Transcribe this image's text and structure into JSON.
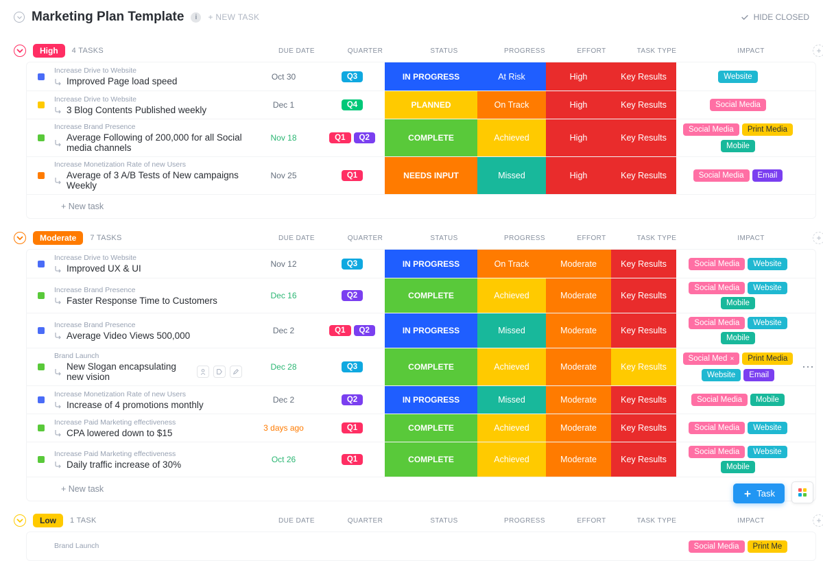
{
  "header": {
    "title": "Marketing Plan Template",
    "newTask": "+ NEW TASK",
    "hideClosed": "HIDE CLOSED"
  },
  "columns": {
    "dueDate": "DUE DATE",
    "quarter": "QUARTER",
    "status": "STATUS",
    "progress": "PROGRESS",
    "effort": "EFFORT",
    "taskType": "TASK TYPE",
    "impact": "IMPACT"
  },
  "newTaskRow": "+ New task",
  "fab": {
    "label": "Task"
  },
  "colors": {
    "high": "#ff2e63",
    "moderate": "#ff7b00",
    "low": "#ffca00",
    "q1": "#ff2e63",
    "q2": "#7a3ff0",
    "q3": "#0fa8e0",
    "q4": "#00c878",
    "statusBlue": "#1f5eff",
    "statusYellow": "#ffca00",
    "statusGreen": "#59c93a",
    "statusOrange": "#ff7b00",
    "statusRed": "#e92c2c",
    "progressBlue": "#1f5eff",
    "progressOrange": "#ff7b00",
    "progressYellow": "#ffca00",
    "progressTeal": "#18b89b",
    "effortRed": "#e92c2c",
    "effortOrange": "#ff7b00",
    "taskTypeRed": "#e92c2c",
    "taskTypeYellow": "#ffca00",
    "impactWebsite": "#1fb8d1",
    "impactSocial": "#ff6fa4",
    "impactPrint": "#ffca00",
    "impactMobile": "#18b89b",
    "impactEmail": "#7a3ff0",
    "dueGray": "#656f7d",
    "dueGreen": "#2bb673",
    "dueOrange": "#ff7b00",
    "squareBlue": "#4a6cf7",
    "squareYellow": "#ffca00",
    "squareGreen": "#59c93a",
    "squareOrange": "#ff7b00",
    "fabBlue": "#2196f3",
    "gridRed": "#ff5757",
    "gridYellow": "#ffca00",
    "gridGreen": "#59c93a",
    "gridBlue": "#0fa8e0"
  },
  "groups": [
    {
      "name": "High",
      "badgeColor": "high",
      "collapseColor": "#ff2e63",
      "taskCount": "4 TASKS",
      "tasks": [
        {
          "breadcrumb": "Increase Drive to Website",
          "title": "Improved Page load speed",
          "square": "squareBlue",
          "due": "Oct 30",
          "dueColor": "dueGray",
          "quarters": [
            {
              "label": "Q3",
              "color": "q3"
            }
          ],
          "status": "IN PROGRESS",
          "statusColor": "statusBlue",
          "progress": "At Risk",
          "progressColor": "progressBlue",
          "effort": "High",
          "effortColor": "effortRed",
          "taskType": "Key Results",
          "taskTypeColor": "taskTypeRed",
          "impact": [
            {
              "label": "Website",
              "color": "impactWebsite"
            }
          ]
        },
        {
          "breadcrumb": "Increase Drive to Website",
          "title": "3 Blog Contents Published weekly",
          "square": "squareYellow",
          "due": "Dec 1",
          "dueColor": "dueGray",
          "quarters": [
            {
              "label": "Q4",
              "color": "q4"
            }
          ],
          "status": "PLANNED",
          "statusColor": "statusYellow",
          "progress": "On Track",
          "progressColor": "progressOrange",
          "effort": "High",
          "effortColor": "effortRed",
          "taskType": "Key Results",
          "taskTypeColor": "taskTypeRed",
          "impact": [
            {
              "label": "Social Media",
              "color": "impactSocial"
            }
          ]
        },
        {
          "breadcrumb": "Increase Brand Presence",
          "title": "Average Following of 200,000 for all Social media channels",
          "square": "squareGreen",
          "due": "Nov 18",
          "dueColor": "dueGreen",
          "quarters": [
            {
              "label": "Q1",
              "color": "q1"
            },
            {
              "label": "Q2",
              "color": "q2"
            }
          ],
          "status": "COMPLETE",
          "statusColor": "statusGreen",
          "progress": "Achieved",
          "progressColor": "progressYellow",
          "effort": "High",
          "effortColor": "effortRed",
          "taskType": "Key Results",
          "taskTypeColor": "taskTypeRed",
          "impact": [
            {
              "label": "Social Media",
              "color": "impactSocial"
            },
            {
              "label": "Print Media",
              "color": "impactPrint",
              "textColor": "#2a2e34"
            },
            {
              "label": "Mobile",
              "color": "impactMobile"
            }
          ]
        },
        {
          "breadcrumb": "Increase Monetization Rate of new Users",
          "title": "Average of 3 A/B Tests of New campaigns Weekly",
          "square": "squareOrange",
          "due": "Nov 25",
          "dueColor": "dueGray",
          "quarters": [
            {
              "label": "Q1",
              "color": "q1"
            }
          ],
          "status": "NEEDS INPUT",
          "statusColor": "statusOrange",
          "progress": "Missed",
          "progressColor": "progressTeal",
          "effort": "High",
          "effortColor": "effortRed",
          "taskType": "Key Results",
          "taskTypeColor": "taskTypeRed",
          "impact": [
            {
              "label": "Social Media",
              "color": "impactSocial"
            },
            {
              "label": "Email",
              "color": "impactEmail"
            }
          ]
        }
      ]
    },
    {
      "name": "Moderate",
      "badgeColor": "moderate",
      "collapseColor": "#ff7b00",
      "taskCount": "7 TASKS",
      "tasks": [
        {
          "breadcrumb": "Increase Drive to Website",
          "title": "Improved UX & UI",
          "square": "squareBlue",
          "due": "Nov 12",
          "dueColor": "dueGray",
          "quarters": [
            {
              "label": "Q3",
              "color": "q3"
            }
          ],
          "status": "IN PROGRESS",
          "statusColor": "statusBlue",
          "progress": "On Track",
          "progressColor": "progressOrange",
          "effort": "Moderate",
          "effortColor": "effortOrange",
          "taskType": "Key Results",
          "taskTypeColor": "taskTypeRed",
          "impact": [
            {
              "label": "Social Media",
              "color": "impactSocial"
            },
            {
              "label": "Website",
              "color": "impactWebsite"
            }
          ]
        },
        {
          "breadcrumb": "Increase Brand Presence",
          "title": "Faster Response Time to Customers",
          "square": "squareGreen",
          "due": "Dec 16",
          "dueColor": "dueGreen",
          "quarters": [
            {
              "label": "Q2",
              "color": "q2"
            }
          ],
          "status": "COMPLETE",
          "statusColor": "statusGreen",
          "progress": "Achieved",
          "progressColor": "progressYellow",
          "effort": "Moderate",
          "effortColor": "effortOrange",
          "taskType": "Key Results",
          "taskTypeColor": "taskTypeRed",
          "impact": [
            {
              "label": "Social Media",
              "color": "impactSocial"
            },
            {
              "label": "Website",
              "color": "impactWebsite"
            },
            {
              "label": "Mobile",
              "color": "impactMobile"
            }
          ]
        },
        {
          "breadcrumb": "Increase Brand Presence",
          "title": "Average Video Views 500,000",
          "square": "squareBlue",
          "due": "Dec 2",
          "dueColor": "dueGray",
          "quarters": [
            {
              "label": "Q1",
              "color": "q1"
            },
            {
              "label": "Q2",
              "color": "q2"
            }
          ],
          "status": "IN PROGRESS",
          "statusColor": "statusBlue",
          "progress": "Missed",
          "progressColor": "progressTeal",
          "effort": "Moderate",
          "effortColor": "effortOrange",
          "taskType": "Key Results",
          "taskTypeColor": "taskTypeRed",
          "impact": [
            {
              "label": "Social Media",
              "color": "impactSocial"
            },
            {
              "label": "Website",
              "color": "impactWebsite"
            },
            {
              "label": "Mobile",
              "color": "impactMobile"
            }
          ]
        },
        {
          "breadcrumb": "Brand Launch",
          "title": "New Slogan encapsulating new vision",
          "square": "squareGreen",
          "hover": true,
          "due": "Dec 28",
          "dueColor": "dueGreen",
          "quarters": [
            {
              "label": "Q3",
              "color": "q3"
            }
          ],
          "status": "COMPLETE",
          "statusColor": "statusGreen",
          "progress": "Achieved",
          "progressColor": "progressYellow",
          "effort": "Moderate",
          "effortColor": "effortOrange",
          "taskType": "Key Results",
          "taskTypeColor": "taskTypeYellow",
          "impact": [
            {
              "label": "Social Med",
              "color": "impactSocial",
              "close": true
            },
            {
              "label": "Print Media",
              "color": "impactPrint",
              "textColor": "#2a2e34"
            },
            {
              "label": "Website",
              "color": "impactWebsite"
            },
            {
              "label": "Email",
              "color": "impactEmail"
            }
          ]
        },
        {
          "breadcrumb": "Increase Monetization Rate of new Users",
          "title": "Increase of 4 promotions monthly",
          "square": "squareBlue",
          "due": "Dec 2",
          "dueColor": "dueGray",
          "quarters": [
            {
              "label": "Q2",
              "color": "q2"
            }
          ],
          "status": "IN PROGRESS",
          "statusColor": "statusBlue",
          "progress": "Missed",
          "progressColor": "progressTeal",
          "effort": "Moderate",
          "effortColor": "effortOrange",
          "taskType": "Key Results",
          "taskTypeColor": "taskTypeRed",
          "impact": [
            {
              "label": "Social Media",
              "color": "impactSocial"
            },
            {
              "label": "Mobile",
              "color": "impactMobile"
            }
          ]
        },
        {
          "breadcrumb": "Increase Paid Marketing effectiveness",
          "title": "CPA lowered down to $15",
          "square": "squareGreen",
          "due": "3 days ago",
          "dueColor": "dueOrange",
          "quarters": [
            {
              "label": "Q1",
              "color": "q1"
            }
          ],
          "status": "COMPLETE",
          "statusColor": "statusGreen",
          "progress": "Achieved",
          "progressColor": "progressYellow",
          "effort": "Moderate",
          "effortColor": "effortOrange",
          "taskType": "Key Results",
          "taskTypeColor": "taskTypeRed",
          "impact": [
            {
              "label": "Social Media",
              "color": "impactSocial"
            },
            {
              "label": "Website",
              "color": "impactWebsite"
            }
          ]
        },
        {
          "breadcrumb": "Increase Paid Marketing effectiveness",
          "title": "Daily traffic increase of 30%",
          "square": "squareGreen",
          "due": "Oct 26",
          "dueColor": "dueGreen",
          "quarters": [
            {
              "label": "Q1",
              "color": "q1"
            }
          ],
          "status": "COMPLETE",
          "statusColor": "statusGreen",
          "progress": "Achieved",
          "progressColor": "progressYellow",
          "effort": "Moderate",
          "effortColor": "effortOrange",
          "taskType": "Key Results",
          "taskTypeColor": "taskTypeRed",
          "impact": [
            {
              "label": "Social Media",
              "color": "impactSocial"
            },
            {
              "label": "Website",
              "color": "impactWebsite"
            },
            {
              "label": "Mobile",
              "color": "impactMobile"
            }
          ]
        }
      ]
    },
    {
      "name": "Low",
      "badgeColor": "low",
      "badgeTextColor": "#2a2e34",
      "collapseColor": "#ffca00",
      "taskCount": "1 TASK",
      "tasks": [
        {
          "breadcrumb": "Brand Launch",
          "title": "",
          "square": "",
          "due": "",
          "dueColor": "dueGray",
          "quarters": [],
          "status": "",
          "statusColor": "",
          "progress": "",
          "progressColor": "",
          "effort": "",
          "effortColor": "",
          "taskType": "",
          "taskTypeColor": "",
          "impact": [
            {
              "label": "Social Media",
              "color": "impactSocial"
            },
            {
              "label": "Print Me",
              "color": "impactPrint",
              "textColor": "#2a2e34"
            }
          ],
          "partial": true
        }
      ]
    }
  ]
}
